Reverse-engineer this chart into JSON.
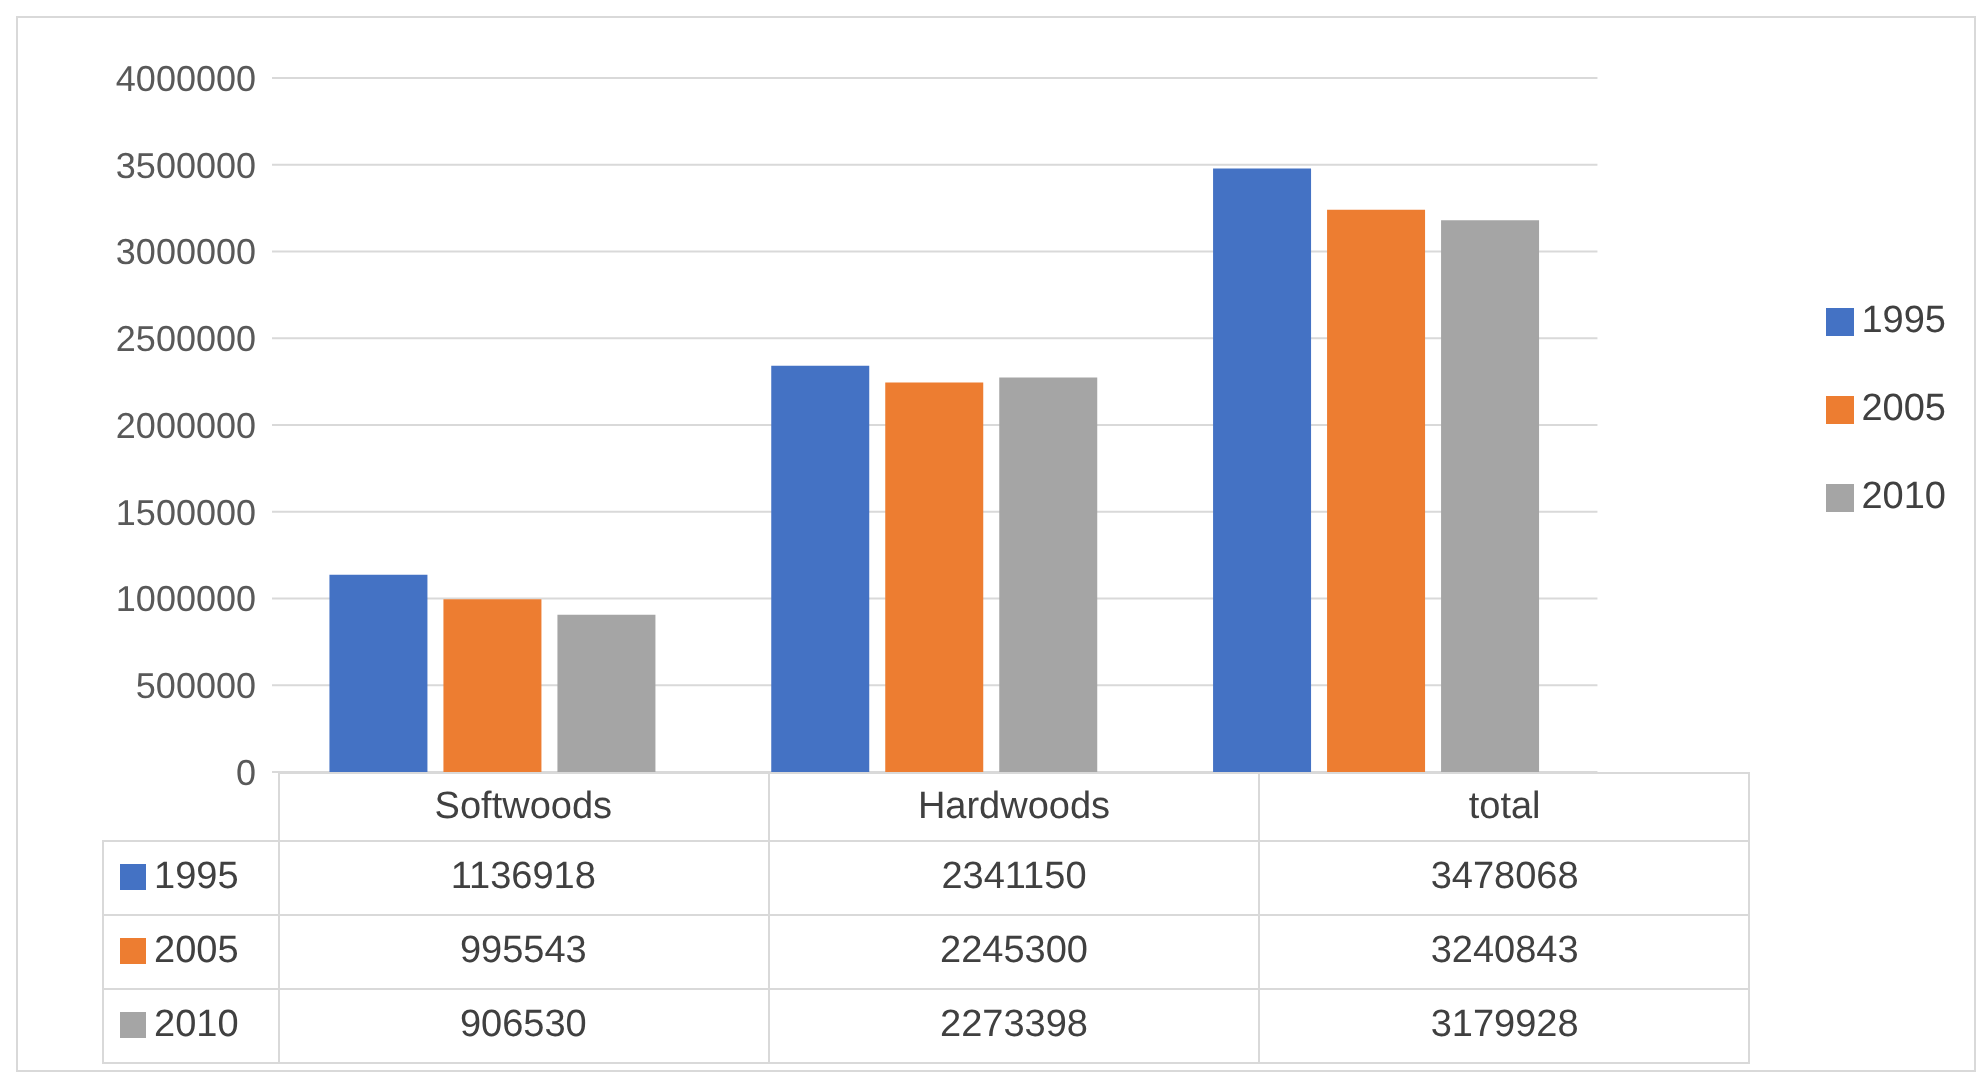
{
  "chart_data": {
    "type": "bar",
    "categories": [
      "Softwoods",
      "Hardwoods",
      "total"
    ],
    "series": [
      {
        "name": "1995",
        "color": "#4472c4",
        "values": [
          1136918,
          2341150,
          3478068
        ]
      },
      {
        "name": "2005",
        "color": "#ed7d31",
        "values": [
          995543,
          2245300,
          3240843
        ]
      },
      {
        "name": "2010",
        "color": "#a5a5a5",
        "values": [
          906530,
          2273398,
          3179928
        ]
      }
    ],
    "ylim": [
      0,
      4000000
    ],
    "yticks": [
      0,
      500000,
      1000000,
      1500000,
      2000000,
      2500000,
      3000000,
      3500000,
      4000000
    ],
    "grid": "y",
    "legend": "right",
    "data_labels": true
  }
}
